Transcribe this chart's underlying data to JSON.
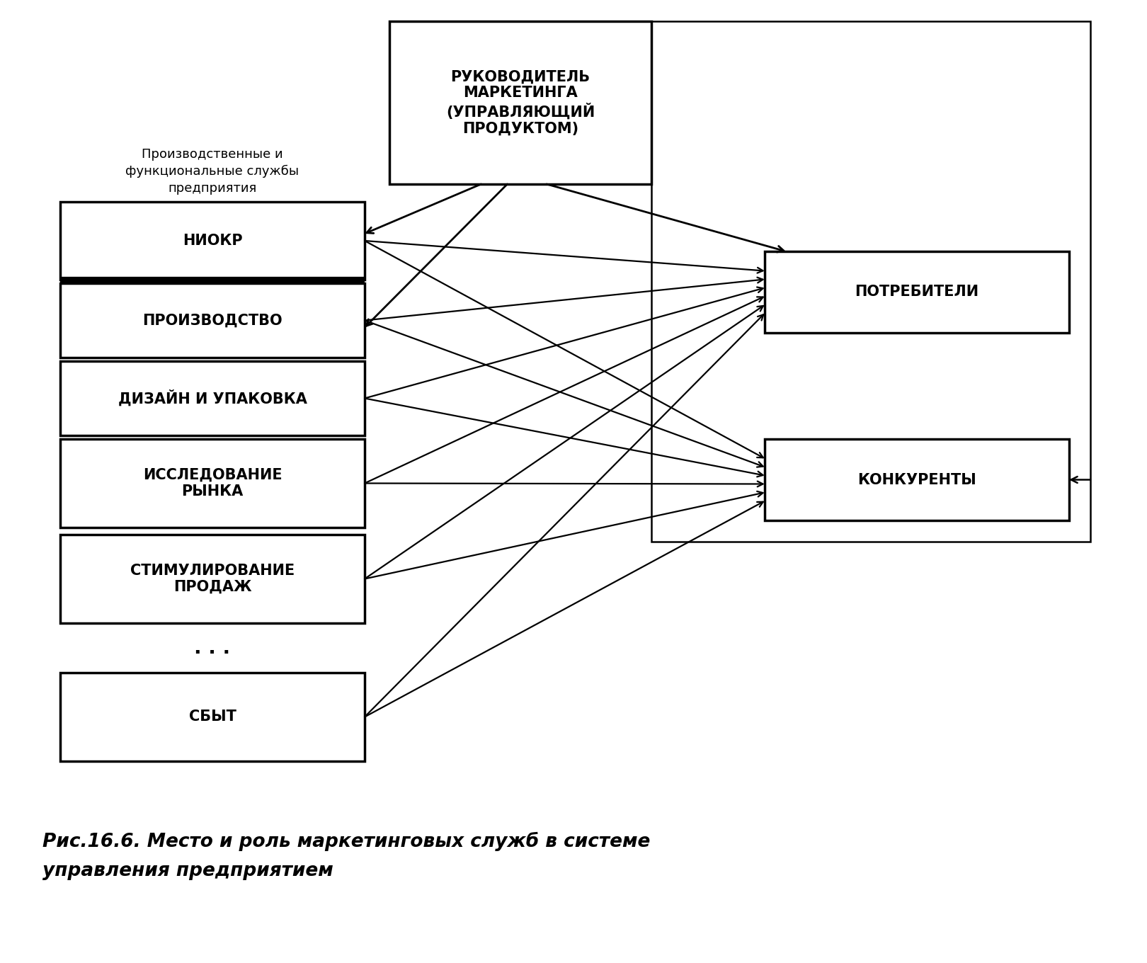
{
  "background_color": "#ffffff",
  "caption_line1": "Рис.16.6. Место и роль маркетинговых служб в системе",
  "caption_line2": "управления предприятием",
  "left_label": "Производственные и\nфункциональные службы\nпредприятия",
  "left_boxes": [
    "НИОКР",
    "ПРОИЗВОДСТВО",
    "ДИЗАЙН И УПАКОВКА",
    "ИССЛЕДОВАНИЕ\nРЫНКА",
    "СТИМУЛИРОВАНИЕ\nПРОДАЖ",
    "СБЫТ"
  ],
  "top_box": "РУКОВОДИТЕЛЬ\nМАРКЕТИНГА\n(УПРАВЛЯЮЩИЙ\nПРОДУКТОМ)",
  "right_box_top": "ПОТРЕБИТЕЛИ",
  "right_box_bot": "КОНКУРЕНТЫ"
}
